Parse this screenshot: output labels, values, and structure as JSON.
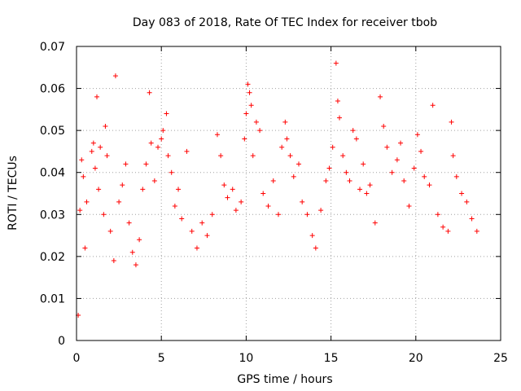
{
  "chart_data": {
    "type": "scatter",
    "title": "Day 083 of 2018, Rate Of TEC Index for receiver tbob",
    "xlabel": "GPS time / hours",
    "ylabel": "ROTI / TECUs",
    "xlim": [
      0,
      25
    ],
    "ylim": [
      0,
      0.07
    ],
    "xticks": [
      0,
      5,
      10,
      15,
      20,
      25
    ],
    "xtick_labels": [
      "0",
      "5",
      "10",
      "15",
      "20",
      "25"
    ],
    "yticks": [
      0,
      0.01,
      0.02,
      0.03,
      0.04,
      0.05,
      0.06,
      0.07
    ],
    "ytick_labels": [
      "0",
      "0.01",
      "0.02",
      "0.03",
      "0.04",
      "0.05",
      "0.06",
      "0.07"
    ],
    "grid": true,
    "marker": "+",
    "color": "#ff0000",
    "series": [
      {
        "name": "ROTI",
        "points": [
          [
            0.1,
            0.006
          ],
          [
            0.2,
            0.031
          ],
          [
            0.3,
            0.043
          ],
          [
            0.4,
            0.039
          ],
          [
            0.5,
            0.022
          ],
          [
            0.6,
            0.033
          ],
          [
            0.9,
            0.045
          ],
          [
            1.0,
            0.047
          ],
          [
            1.1,
            0.041
          ],
          [
            1.2,
            0.058
          ],
          [
            1.3,
            0.036
          ],
          [
            1.4,
            0.046
          ],
          [
            1.6,
            0.03
          ],
          [
            1.7,
            0.051
          ],
          [
            1.8,
            0.044
          ],
          [
            2.0,
            0.026
          ],
          [
            2.2,
            0.019
          ],
          [
            2.3,
            0.063
          ],
          [
            2.5,
            0.033
          ],
          [
            2.7,
            0.037
          ],
          [
            2.9,
            0.042
          ],
          [
            3.1,
            0.028
          ],
          [
            3.3,
            0.021
          ],
          [
            3.5,
            0.018
          ],
          [
            3.7,
            0.024
          ],
          [
            3.9,
            0.036
          ],
          [
            4.1,
            0.042
          ],
          [
            4.3,
            0.059
          ],
          [
            4.4,
            0.047
          ],
          [
            4.6,
            0.038
          ],
          [
            4.8,
            0.046
          ],
          [
            5.0,
            0.048
          ],
          [
            5.1,
            0.05
          ],
          [
            5.3,
            0.054
          ],
          [
            5.4,
            0.044
          ],
          [
            5.6,
            0.04
          ],
          [
            5.8,
            0.032
          ],
          [
            6.0,
            0.036
          ],
          [
            6.2,
            0.029
          ],
          [
            6.5,
            0.045
          ],
          [
            6.8,
            0.026
          ],
          [
            7.1,
            0.022
          ],
          [
            7.4,
            0.028
          ],
          [
            7.7,
            0.025
          ],
          [
            8.0,
            0.03
          ],
          [
            8.3,
            0.049
          ],
          [
            8.5,
            0.044
          ],
          [
            8.7,
            0.037
          ],
          [
            8.9,
            0.034
          ],
          [
            9.2,
            0.036
          ],
          [
            9.4,
            0.031
          ],
          [
            9.7,
            0.033
          ],
          [
            9.9,
            0.048
          ],
          [
            10.0,
            0.054
          ],
          [
            10.1,
            0.061
          ],
          [
            10.2,
            0.059
          ],
          [
            10.3,
            0.056
          ],
          [
            10.4,
            0.044
          ],
          [
            10.6,
            0.052
          ],
          [
            10.8,
            0.05
          ],
          [
            11.0,
            0.035
          ],
          [
            11.3,
            0.032
          ],
          [
            11.6,
            0.038
          ],
          [
            11.9,
            0.03
          ],
          [
            12.1,
            0.046
          ],
          [
            12.3,
            0.052
          ],
          [
            12.4,
            0.048
          ],
          [
            12.6,
            0.044
          ],
          [
            12.8,
            0.039
          ],
          [
            13.1,
            0.042
          ],
          [
            13.3,
            0.033
          ],
          [
            13.6,
            0.03
          ],
          [
            13.9,
            0.025
          ],
          [
            14.1,
            0.022
          ],
          [
            14.4,
            0.031
          ],
          [
            14.7,
            0.038
          ],
          [
            14.9,
            0.041
          ],
          [
            15.1,
            0.046
          ],
          [
            15.3,
            0.066
          ],
          [
            15.4,
            0.057
          ],
          [
            15.5,
            0.053
          ],
          [
            15.7,
            0.044
          ],
          [
            15.9,
            0.04
          ],
          [
            16.1,
            0.038
          ],
          [
            16.3,
            0.05
          ],
          [
            16.5,
            0.048
          ],
          [
            16.7,
            0.036
          ],
          [
            16.9,
            0.042
          ],
          [
            17.1,
            0.035
          ],
          [
            17.3,
            0.037
          ],
          [
            17.6,
            0.028
          ],
          [
            17.9,
            0.058
          ],
          [
            18.1,
            0.051
          ],
          [
            18.3,
            0.046
          ],
          [
            18.6,
            0.04
          ],
          [
            18.9,
            0.043
          ],
          [
            19.1,
            0.047
          ],
          [
            19.3,
            0.038
          ],
          [
            19.6,
            0.032
          ],
          [
            19.9,
            0.041
          ],
          [
            20.1,
            0.049
          ],
          [
            20.3,
            0.045
          ],
          [
            20.5,
            0.039
          ],
          [
            20.8,
            0.037
          ],
          [
            21.0,
            0.056
          ],
          [
            21.3,
            0.03
          ],
          [
            21.6,
            0.027
          ],
          [
            21.9,
            0.026
          ],
          [
            22.1,
            0.052
          ],
          [
            22.2,
            0.044
          ],
          [
            22.4,
            0.039
          ],
          [
            22.7,
            0.035
          ],
          [
            23.0,
            0.033
          ],
          [
            23.3,
            0.029
          ],
          [
            23.6,
            0.026
          ]
        ]
      }
    ]
  }
}
